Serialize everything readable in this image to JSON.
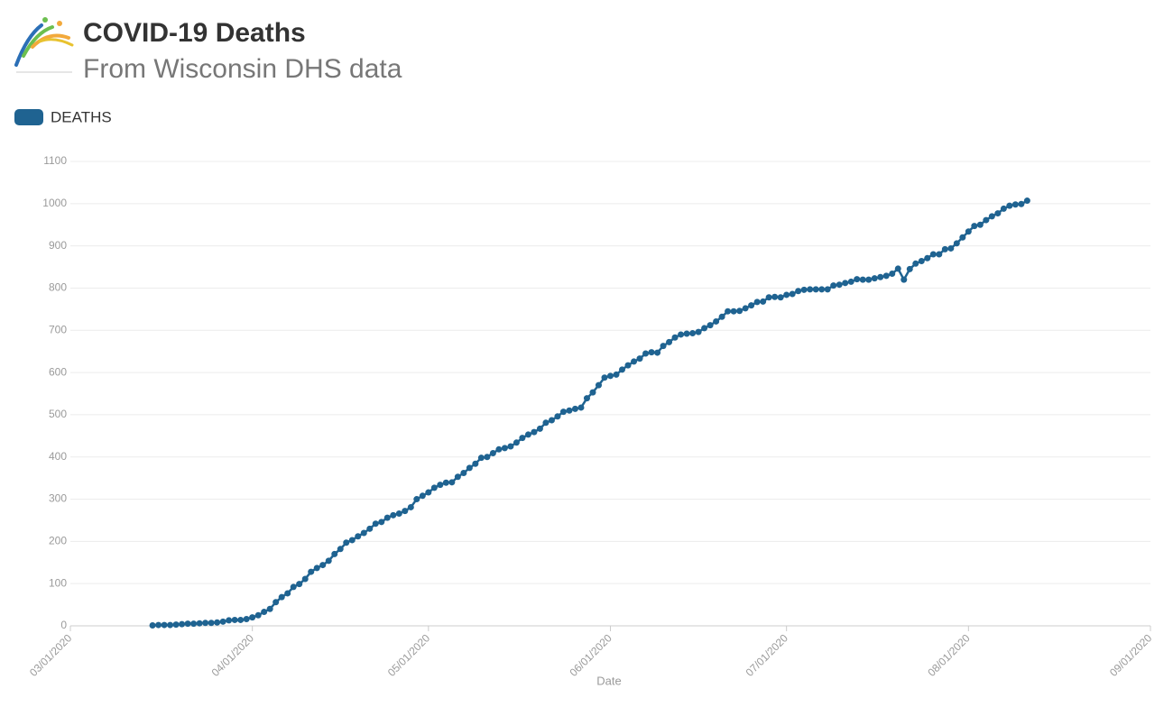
{
  "chart_data": {
    "type": "line",
    "title": "COVID-19 Deaths",
    "subtitle": "From Wisconsin DHS data",
    "x_label": "Date",
    "grid": true,
    "legend": "top-left",
    "xlim": [
      "03/01/2020",
      "09/01/2020"
    ],
    "xticks": [
      "03/01/2020",
      "04/01/2020",
      "05/01/2020",
      "06/01/2020",
      "07/01/2020",
      "08/01/2020",
      "09/01/2020"
    ],
    "ylim": [
      0,
      1100
    ],
    "yticks": [
      0,
      100,
      200,
      300,
      400,
      500,
      600,
      700,
      800,
      900,
      1000,
      1100
    ],
    "x": [
      "03/15/2020",
      "03/16/2020",
      "03/17/2020",
      "03/18/2020",
      "03/19/2020",
      "03/20/2020",
      "03/21/2020",
      "03/22/2020",
      "03/23/2020",
      "03/24/2020",
      "03/25/2020",
      "03/26/2020",
      "03/27/2020",
      "03/28/2020",
      "03/29/2020",
      "03/30/2020",
      "03/31/2020",
      "04/01/2020",
      "04/02/2020",
      "04/03/2020",
      "04/04/2020",
      "04/05/2020",
      "04/06/2020",
      "04/07/2020",
      "04/08/2020",
      "04/09/2020",
      "04/10/2020",
      "04/11/2020",
      "04/12/2020",
      "04/13/2020",
      "04/14/2020",
      "04/15/2020",
      "04/16/2020",
      "04/17/2020",
      "04/18/2020",
      "04/19/2020",
      "04/20/2020",
      "04/21/2020",
      "04/22/2020",
      "04/23/2020",
      "04/24/2020",
      "04/25/2020",
      "04/26/2020",
      "04/27/2020",
      "04/28/2020",
      "04/29/2020",
      "04/30/2020",
      "05/01/2020",
      "05/02/2020",
      "05/03/2020",
      "05/04/2020",
      "05/05/2020",
      "05/06/2020",
      "05/07/2020",
      "05/08/2020",
      "05/09/2020",
      "05/10/2020",
      "05/11/2020",
      "05/12/2020",
      "05/13/2020",
      "05/14/2020",
      "05/15/2020",
      "05/16/2020",
      "05/17/2020",
      "05/18/2020",
      "05/19/2020",
      "05/20/2020",
      "05/21/2020",
      "05/22/2020",
      "05/23/2020",
      "05/24/2020",
      "05/25/2020",
      "05/26/2020",
      "05/27/2020",
      "05/28/2020",
      "05/29/2020",
      "05/30/2020",
      "05/31/2020",
      "06/01/2020",
      "06/02/2020",
      "06/03/2020",
      "06/04/2020",
      "06/05/2020",
      "06/06/2020",
      "06/07/2020",
      "06/08/2020",
      "06/09/2020",
      "06/10/2020",
      "06/11/2020",
      "06/12/2020",
      "06/13/2020",
      "06/14/2020",
      "06/15/2020",
      "06/16/2020",
      "06/17/2020",
      "06/18/2020",
      "06/19/2020",
      "06/20/2020",
      "06/21/2020",
      "06/22/2020",
      "06/23/2020",
      "06/24/2020",
      "06/25/2020",
      "06/26/2020",
      "06/27/2020",
      "06/28/2020",
      "06/29/2020",
      "06/30/2020",
      "07/01/2020",
      "07/02/2020",
      "07/03/2020",
      "07/04/2020",
      "07/05/2020",
      "07/06/2020",
      "07/07/2020",
      "07/08/2020",
      "07/09/2020",
      "07/10/2020",
      "07/11/2020",
      "07/12/2020",
      "07/13/2020",
      "07/14/2020",
      "07/15/2020",
      "07/16/2020",
      "07/17/2020",
      "07/18/2020",
      "07/19/2020",
      "07/20/2020",
      "07/21/2020",
      "07/22/2020",
      "07/23/2020",
      "07/24/2020",
      "07/25/2020",
      "07/26/2020",
      "07/27/2020",
      "07/28/2020",
      "07/29/2020",
      "07/30/2020",
      "07/31/2020",
      "08/01/2020",
      "08/02/2020",
      "08/03/2020",
      "08/04/2020",
      "08/05/2020",
      "08/06/2020",
      "08/07/2020",
      "08/08/2020",
      "08/09/2020",
      "08/10/2020",
      "08/11/2020"
    ],
    "series": [
      {
        "name": "DEATHS",
        "color": "#1f6391",
        "values": [
          1,
          2,
          2,
          2,
          3,
          4,
          5,
          5,
          6,
          7,
          7,
          8,
          10,
          13,
          14,
          14,
          16,
          20,
          25,
          33,
          40,
          56,
          68,
          77,
          92,
          99,
          111,
          128,
          137,
          144,
          154,
          170,
          182,
          197,
          203,
          212,
          220,
          230,
          242,
          246,
          256,
          262,
          266,
          272,
          281,
          300,
          308,
          316,
          327,
          334,
          339,
          340,
          353,
          362,
          374,
          384,
          398,
          400,
          409,
          418,
          421,
          425,
          434,
          445,
          453,
          459,
          467,
          481,
          487,
          496,
          507,
          510,
          514,
          517,
          539,
          553,
          570,
          588,
          592,
          595,
          607,
          617,
          626,
          633,
          645,
          648,
          647,
          663,
          672,
          683,
          690,
          692,
          693,
          696,
          705,
          712,
          721,
          732,
          745,
          745,
          746,
          752,
          759,
          767,
          768,
          778,
          779,
          778,
          784,
          786,
          793,
          796,
          797,
          797,
          797,
          797,
          806,
          808,
          812,
          815,
          821,
          820,
          820,
          823,
          826,
          829,
          834,
          846,
          820,
          845,
          858,
          864,
          871,
          880,
          880,
          892,
          894,
          906,
          920,
          934,
          947,
          950,
          961,
          970,
          977,
          988,
          995,
          998,
          999,
          1007
        ]
      }
    ]
  }
}
